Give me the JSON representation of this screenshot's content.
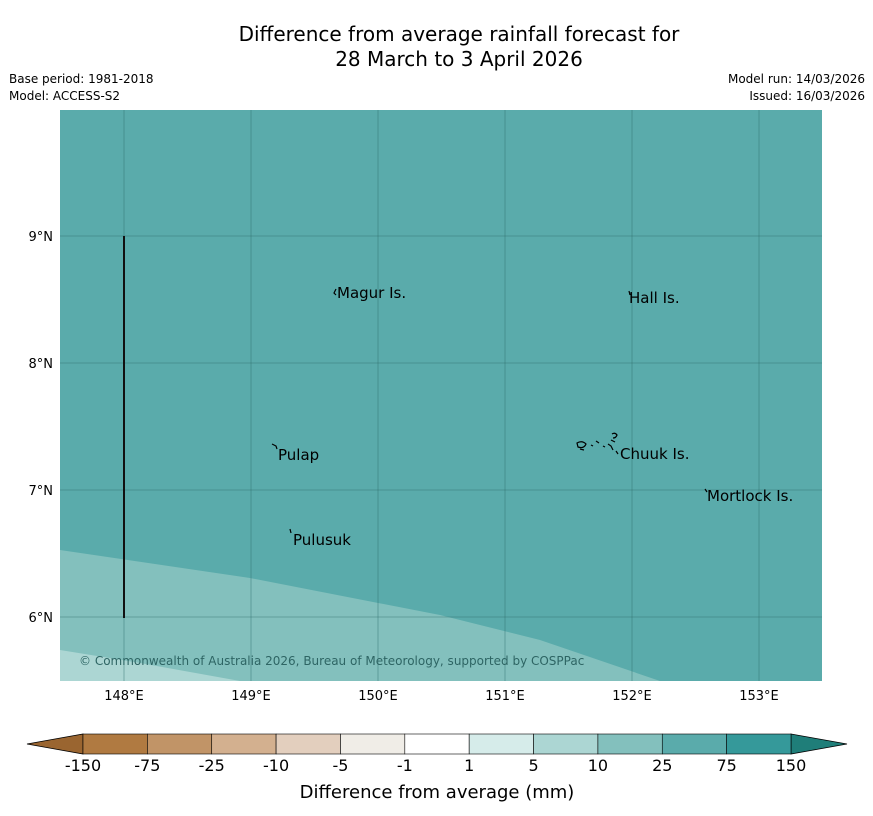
{
  "title": {
    "line1": "Difference from average rainfall forecast for",
    "line2": "28 March to 3 April 2026"
  },
  "meta": {
    "base_period": "Base period: 1981-2018",
    "model": "Model: ACCESS-S2",
    "model_run": "Model run: 14/03/2026",
    "issued": "Issued: 16/03/2026"
  },
  "map": {
    "longitude_labels": [
      "148°E",
      "149°E",
      "150°E",
      "151°E",
      "152°E",
      "153°E"
    ],
    "latitude_labels": [
      "9°N",
      "8°N",
      "7°N",
      "6°N"
    ],
    "place_labels": {
      "magur": "Magur Is.",
      "hall": "Hall Is.",
      "pulap": "Pulap",
      "chuuk": "Chuuk Is.",
      "mortlock": "Mortlock Is.",
      "pulusuk": "Pulusuk"
    },
    "copyright": "© Commonwealth of Australia 2026, Bureau of Meteorology, supported by COSPPac",
    "categories": {
      "main": "25 to 75 mm",
      "south_band": "10 to 25 mm",
      "southwest_corner": "5 to 10 mm"
    }
  },
  "colorbar": {
    "ticks": [
      "-150",
      "-75",
      "-25",
      "-10",
      "-5",
      "-1",
      "1",
      "5",
      "10",
      "25",
      "75",
      "150"
    ],
    "colors": [
      "#9a6530",
      "#b07a41",
      "#c19467",
      "#d3b08f",
      "#e3cfbe",
      "#f0ede7",
      "#ffffff",
      "#d6ecea",
      "#acd6d3",
      "#83c0bd",
      "#5aabab",
      "#35999a",
      "#1f7e79"
    ],
    "label": "Difference from average (mm)"
  }
}
